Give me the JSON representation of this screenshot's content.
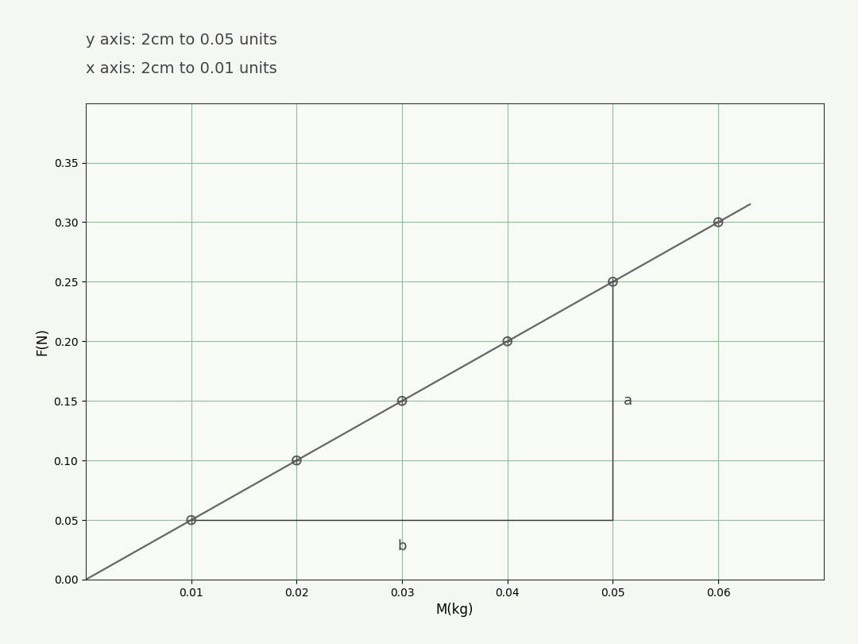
{
  "chart_data": {
    "type": "scatter",
    "x_label": "M(kg)",
    "y_label": "F(N)",
    "annotations": [
      "y axis: 2cm to 0.05 units",
      "x axis: 2cm to 0.01 units"
    ],
    "slope_labels": [
      "a",
      "b"
    ],
    "series": [
      {
        "type": "scatter",
        "color": "#555555",
        "marker": "o",
        "x": [
          0.01,
          0.02,
          0.03,
          0.04,
          0.05,
          0.06
        ],
        "values": [
          0.05,
          0.1,
          0.15,
          0.2,
          0.25,
          0.3
        ]
      },
      {
        "type": "line",
        "color": "#666666",
        "line_style": "solid",
        "x": [
          0.0,
          0.063
        ],
        "values": [
          0.0,
          0.315
        ]
      }
    ],
    "xlim": [
      0,
      0.07
    ],
    "ylim": [
      0,
      0.4
    ],
    "xticks": [
      0.01,
      0.02,
      0.03,
      0.04,
      0.05,
      0.06
    ],
    "yticks": [
      {
        "value": 0,
        "label": "0.00"
      },
      0.05,
      {
        "value": 0.1,
        "label": "0.10"
      },
      0.15,
      {
        "value": 0.2,
        "label": "0.20"
      },
      0.25,
      {
        "value": 0.3,
        "label": "0.30"
      },
      0.35
    ],
    "grid": true
  }
}
